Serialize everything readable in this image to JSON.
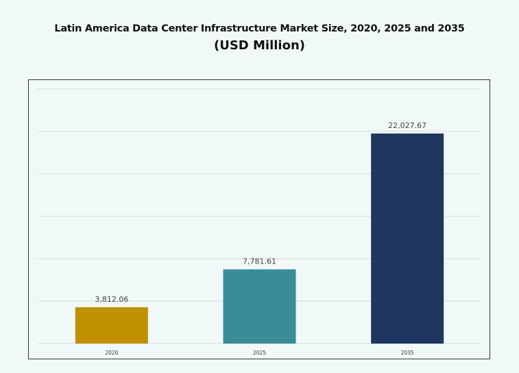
{
  "chart_data": {
    "type": "bar",
    "title": "Latin America Data Center Infrastructure Market Size, 2020, 2025 and 2035",
    "subtitle": "(USD Million)",
    "categories": [
      "2020",
      "2025",
      "2035"
    ],
    "values": [
      3812.06,
      7781.61,
      22027.67
    ],
    "value_labels": [
      "3,812.06",
      "7,781.61",
      "22,027.67"
    ],
    "colors": [
      "#c09000",
      "#3a8c96",
      "#1f3660"
    ],
    "xlabel": "",
    "ylabel": "",
    "ylim": [
      0,
      26700
    ],
    "grid": true,
    "y_tick_labels_shown": false
  }
}
